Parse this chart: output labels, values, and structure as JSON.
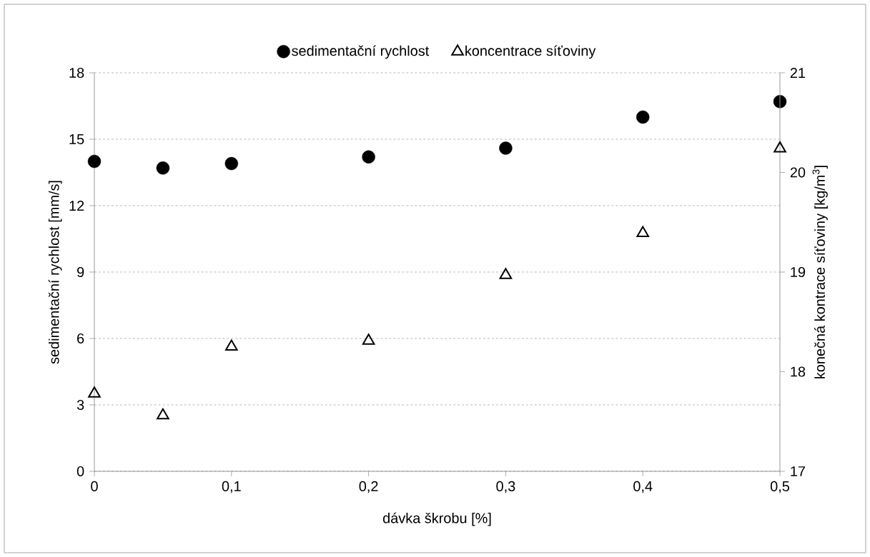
{
  "chart_data": {
    "type": "scatter",
    "xlabel": "dávka škrobu [%]",
    "ylabel": "sedimentační rychlost [mm/s]",
    "y2label": "konečná kontrace síťoviny [kg/m$^{3}$]",
    "x": [
      0,
      0.05,
      0.1,
      0.2,
      0.3,
      0.4,
      0.5
    ],
    "series": [
      {
        "name": "sedimentační rychlost",
        "color": "#000000",
        "marker": "circle",
        "values": [
          14.0,
          13.7,
          13.9,
          14.2,
          14.6,
          16.0,
          16.7
        ]
      },
      {
        "name": "koncentrace síťoviny",
        "color": "#000000",
        "marker": "triangle",
        "axis": "y2",
        "values": [
          17.78,
          17.56,
          18.25,
          18.31,
          18.97,
          19.39,
          20.24
        ]
      }
    ],
    "xlim": [
      0,
      0.5
    ],
    "xticks": [
      0,
      {
        "value": 0.1,
        "label": "0,1"
      },
      {
        "value": 0.2,
        "label": "0,2"
      },
      {
        "value": 0.3,
        "label": "0,3"
      },
      {
        "value": 0.4,
        "label": "0,4"
      },
      {
        "value": 0.5,
        "label": "0,5"
      }
    ],
    "ylim": [
      0,
      18
    ],
    "yticks": [
      0,
      3,
      6,
      9,
      12,
      15,
      18
    ],
    "y2lim": [
      17,
      21
    ],
    "y2ticks": [
      17,
      18,
      19,
      20,
      21
    ],
    "grid": "y",
    "legend": "top"
  }
}
